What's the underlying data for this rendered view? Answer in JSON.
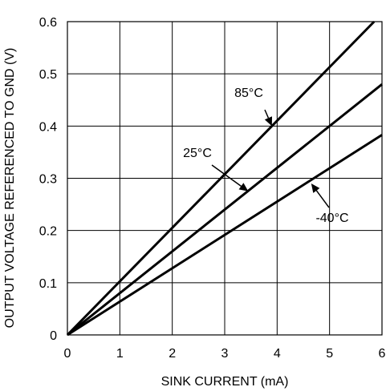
{
  "chart_data": {
    "type": "line",
    "title": "",
    "xlabel": "SINK CURRENT (mA)",
    "ylabel": "OUTPUT VOLTAGE REFERENCED TO GND (V)",
    "xlim": [
      0,
      6
    ],
    "ylim": [
      0,
      0.6
    ],
    "xticks": [
      "0",
      "1",
      "2",
      "3",
      "4",
      "5",
      "6"
    ],
    "yticks": [
      "0",
      "0.1",
      "0.2",
      "0.3",
      "0.4",
      "0.5",
      "0.6"
    ],
    "grid": true,
    "series": [
      {
        "name": "85°C",
        "x": [
          0,
          5.85
        ],
        "y": [
          0,
          0.6
        ]
      },
      {
        "name": "25°C",
        "x": [
          0,
          6
        ],
        "y": [
          0,
          0.48
        ]
      },
      {
        "name": "-40°C",
        "x": [
          0,
          6
        ],
        "y": [
          0,
          0.383
        ]
      }
    ],
    "annotations": [
      {
        "text": "85°C",
        "series": 0,
        "x": 3.9,
        "y": 0.4
      },
      {
        "text": "25°C",
        "series": 1,
        "x": 3.45,
        "y": 0.275
      },
      {
        "text": "-40°C",
        "series": 2,
        "x": 4.65,
        "y": 0.29
      }
    ],
    "colors": {
      "line": "#000000",
      "grid": "#000000",
      "background": "#ffffff"
    }
  }
}
